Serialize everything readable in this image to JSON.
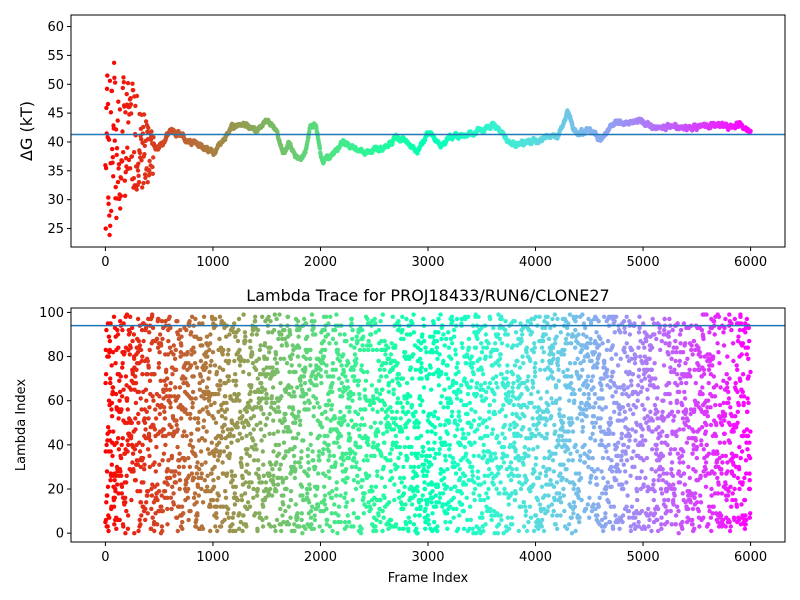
{
  "chart_data": [
    {
      "type": "scatter",
      "title": "",
      "xlabel": "",
      "ylabel": "ΔG (kT)",
      "xlim": [
        -320,
        6320
      ],
      "ylim": [
        21.8,
        62.0
      ],
      "x_ticks": [
        0,
        1000,
        2000,
        3000,
        4000,
        5000,
        6000
      ],
      "x_tick_labels": [
        "0",
        "1000",
        "2000",
        "3000",
        "4000",
        "5000",
        "6000"
      ],
      "y_ticks": [
        25,
        30,
        35,
        40,
        45,
        50,
        55,
        60
      ],
      "y_tick_labels": [
        "25",
        "30",
        "35",
        "40",
        "45",
        "50",
        "55",
        "60"
      ],
      "colormap": "rainbow (red at frame 0 → violet at frame 6000)",
      "hline": {
        "y": 41.3,
        "color": "#1f77b4"
      },
      "grid": false,
      "series_trend": [
        [
          0,
          40
        ],
        [
          50,
          42
        ],
        [
          100,
          40
        ],
        [
          150,
          41
        ],
        [
          200,
          42
        ],
        [
          300,
          39.5
        ],
        [
          400,
          38
        ],
        [
          500,
          39
        ],
        [
          600,
          42
        ],
        [
          700,
          41
        ],
        [
          800,
          40
        ],
        [
          900,
          39
        ],
        [
          1000,
          38
        ],
        [
          1100,
          41
        ],
        [
          1200,
          43
        ],
        [
          1300,
          43
        ],
        [
          1400,
          42
        ],
        [
          1500,
          44
        ],
        [
          1600,
          41
        ],
        [
          1650,
          38
        ],
        [
          1700,
          40
        ],
        [
          1750,
          37.5
        ],
        [
          1800,
          37
        ],
        [
          1850,
          38
        ],
        [
          1900,
          43
        ],
        [
          1950,
          43
        ],
        [
          2000,
          36.5
        ],
        [
          2050,
          37
        ],
        [
          2100,
          38
        ],
        [
          2200,
          40
        ],
        [
          2300,
          39
        ],
        [
          2400,
          38
        ],
        [
          2500,
          39
        ],
        [
          2600,
          39
        ],
        [
          2700,
          41
        ],
        [
          2800,
          40
        ],
        [
          2900,
          38.5
        ],
        [
          3000,
          42
        ],
        [
          3100,
          39
        ],
        [
          3200,
          41
        ],
        [
          3300,
          41
        ],
        [
          3400,
          41.5
        ],
        [
          3500,
          42
        ],
        [
          3600,
          43
        ],
        [
          3700,
          41
        ],
        [
          3800,
          39.5
        ],
        [
          3900,
          40
        ],
        [
          4000,
          40
        ],
        [
          4100,
          41
        ],
        [
          4200,
          41
        ],
        [
          4300,
          45.5
        ],
        [
          4350,
          42
        ],
        [
          4400,
          41.5
        ],
        [
          4500,
          42
        ],
        [
          4600,
          40
        ],
        [
          4700,
          43
        ],
        [
          4800,
          43.5
        ],
        [
          4900,
          43.5
        ],
        [
          5000,
          43.5
        ],
        [
          5100,
          42.5
        ],
        [
          5200,
          42.5
        ],
        [
          5300,
          42.5
        ],
        [
          5400,
          42.5
        ],
        [
          5500,
          42.5
        ],
        [
          5600,
          43
        ],
        [
          5700,
          43
        ],
        [
          5800,
          42.5
        ],
        [
          5900,
          43
        ],
        [
          6000,
          42
        ]
      ]
    },
    {
      "type": "scatter",
      "title": "Lambda Trace for PROJ18433/RUN6/CLONE27",
      "xlabel": "Frame Index",
      "ylabel": "Lambda Index",
      "xlim": [
        -320,
        6320
      ],
      "ylim": [
        -4,
        102
      ],
      "x_ticks": [
        0,
        1000,
        2000,
        3000,
        4000,
        5000,
        6000
      ],
      "x_tick_labels": [
        "0",
        "1000",
        "2000",
        "3000",
        "4000",
        "5000",
        "6000"
      ],
      "y_ticks": [
        0,
        20,
        40,
        60,
        80,
        100
      ],
      "y_tick_labels": [
        "0",
        "20",
        "40",
        "60",
        "80",
        "100"
      ],
      "y_range_points": [
        0,
        99
      ],
      "colormap": "rainbow (red at frame 0 → violet at frame 6000)",
      "hline": {
        "y": 94,
        "color": "#1f77b4"
      },
      "grid": false
    }
  ]
}
